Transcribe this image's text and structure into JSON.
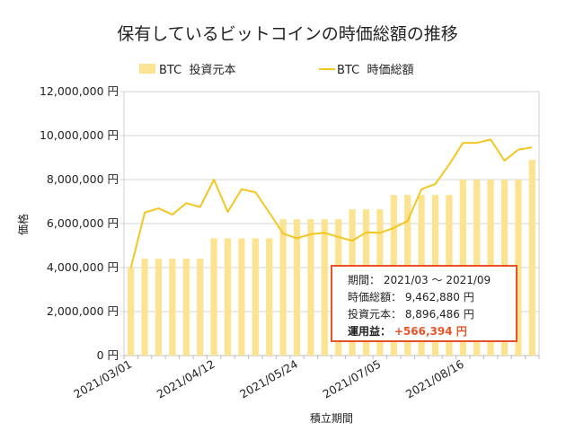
{
  "chart_data": {
    "type": "bar+line",
    "title": "保有しているビットコインの時価総額の推移",
    "xlabel": "積立期間",
    "ylabel": "価格",
    "ylim": [
      0,
      12000000
    ],
    "yticks": [
      "0 円",
      "2,000,000 円",
      "4,000,000 円",
      "6,000,000 円",
      "8,000,000 円",
      "10,000,000 円",
      "12,000,000 円"
    ],
    "ytick_values": [
      0,
      2000000,
      4000000,
      6000000,
      8000000,
      10000000,
      12000000
    ],
    "xtick_labels": [
      "2021/03/01",
      "2021/04/12",
      "2021/05/24",
      "2021/07/05",
      "2021/08/16"
    ],
    "grid": true,
    "legend": "top",
    "categories": [
      "2021/03/01",
      "2021/03/08",
      "2021/03/15",
      "2021/03/22",
      "2021/03/29",
      "2021/04/05",
      "2021/04/12",
      "2021/04/19",
      "2021/04/26",
      "2021/05/03",
      "2021/05/10",
      "2021/05/17",
      "2021/05/24",
      "2021/05/31",
      "2021/06/07",
      "2021/06/14",
      "2021/06/21",
      "2021/06/28",
      "2021/07/05",
      "2021/07/12",
      "2021/07/19",
      "2021/07/26",
      "2021/08/02",
      "2021/08/09",
      "2021/08/16",
      "2021/08/23",
      "2021/08/30",
      "2021/09/06",
      "2021/09/13",
      "2021/09/20"
    ],
    "series": [
      {
        "name": "BTC  投資元本",
        "kind": "bar",
        "color": "#FCE391",
        "values": [
          4000000,
          4400000,
          4400000,
          4400000,
          4400000,
          4400000,
          5330000,
          5330000,
          5330000,
          5330000,
          5330000,
          6200000,
          6200000,
          6200000,
          6200000,
          6200000,
          6650000,
          6650000,
          6650000,
          7300000,
          7300000,
          7300000,
          7300000,
          7300000,
          8000000,
          8000000,
          8000000,
          8000000,
          8000000,
          8896486
        ]
      },
      {
        "name": "BTC  時価総額",
        "kind": "line",
        "color": "#F3C623",
        "values": [
          3990000,
          6500000,
          6690000,
          6410000,
          6930000,
          6750000,
          8000000,
          6530000,
          7560000,
          7430000,
          6500000,
          5550000,
          5330000,
          5520000,
          5580000,
          5390000,
          5220000,
          5600000,
          5580000,
          5800000,
          6120000,
          7560000,
          7800000,
          8680000,
          9670000,
          9670000,
          9820000,
          8860000,
          9360000,
          9462880
        ]
      }
    ]
  },
  "summary": {
    "period_label": "期間：",
    "period_value": "2021/03 ～ 2021/09",
    "market_value_label": "時価総額：",
    "market_value": "9,462,880 円",
    "principal_label": "投資元本：",
    "principal_value": "8,896,486 円",
    "profit_label": "運用益：",
    "profit_value": "+566,394 円",
    "border_color": "#E8502A"
  }
}
